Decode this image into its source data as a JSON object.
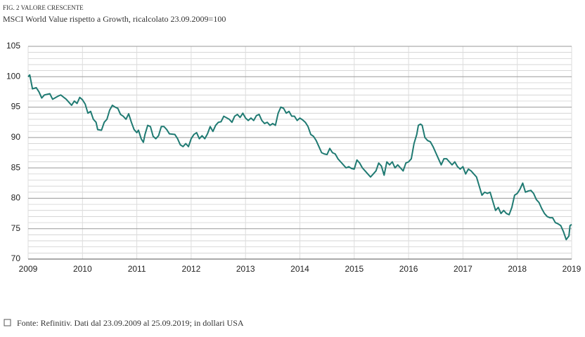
{
  "chart_data": {
    "type": "line",
    "kicker": "FIG. 2 VALORE CRESCENTE",
    "title": "MSCI World Value rispetto a Growth, ricalcolato 23.09.2009=100",
    "source": "Fonte: Refinitiv. Dati dal 23.09.2009 al 25.09.2019; in dollari USA",
    "xlim": [
      2009,
      2019
    ],
    "xticks": [
      2009,
      2010,
      2011,
      2012,
      2013,
      2014,
      2015,
      2016,
      2017,
      2018,
      2019
    ],
    "ylim": [
      70,
      105
    ],
    "yticks": [
      70,
      75,
      80,
      85,
      90,
      95,
      100,
      105
    ],
    "yminorticks": [
      71,
      72,
      73,
      74,
      76,
      77,
      78,
      79,
      81,
      82,
      83,
      84,
      86,
      87,
      88,
      89,
      91,
      92,
      93,
      94,
      96,
      97,
      98,
      99,
      101,
      102,
      103,
      104
    ],
    "grid": true,
    "series": [
      {
        "color": "#1f7a72",
        "x": [
          2009.0,
          2009.03,
          2009.08,
          2009.15,
          2009.2,
          2009.25,
          2009.3,
          2009.4,
          2009.45,
          2009.55,
          2009.6,
          2009.7,
          2009.8,
          2009.85,
          2009.9,
          2009.95,
          2010.0,
          2010.05,
          2010.1,
          2010.15,
          2010.2,
          2010.25,
          2010.28,
          2010.35,
          2010.4,
          2010.45,
          2010.5,
          2010.55,
          2010.6,
          2010.65,
          2010.7,
          2010.75,
          2010.8,
          2010.85,
          2010.9,
          2010.95,
          2011.0,
          2011.03,
          2011.08,
          2011.12,
          2011.15,
          2011.2,
          2011.25,
          2011.3,
          2011.35,
          2011.4,
          2011.45,
          2011.5,
          2011.55,
          2011.6,
          2011.7,
          2011.75,
          2011.8,
          2011.85,
          2011.9,
          2011.95,
          2012.0,
          2012.05,
          2012.1,
          2012.15,
          2012.2,
          2012.25,
          2012.3,
          2012.35,
          2012.4,
          2012.45,
          2012.5,
          2012.55,
          2012.6,
          2012.7,
          2012.75,
          2012.8,
          2012.85,
          2012.9,
          2012.95,
          2013.0,
          2013.05,
          2013.1,
          2013.15,
          2013.2,
          2013.25,
          2013.3,
          2013.35,
          2013.4,
          2013.45,
          2013.5,
          2013.55,
          2013.6,
          2013.65,
          2013.7,
          2013.75,
          2013.8,
          2013.85,
          2013.9,
          2013.95,
          2014.0,
          2014.05,
          2014.1,
          2014.15,
          2014.2,
          2014.25,
          2014.3,
          2014.35,
          2014.4,
          2014.45,
          2014.5,
          2014.55,
          2014.6,
          2014.65,
          2014.7,
          2014.75,
          2014.8,
          2014.85,
          2014.9,
          2014.95,
          2015.0,
          2015.05,
          2015.1,
          2015.15,
          2015.2,
          2015.25,
          2015.3,
          2015.35,
          2015.4,
          2015.45,
          2015.5,
          2015.55,
          2015.6,
          2015.65,
          2015.7,
          2015.75,
          2015.8,
          2015.85,
          2015.9,
          2015.95,
          2016.0,
          2016.05,
          2016.1,
          2016.15,
          2016.18,
          2016.22,
          2016.25,
          2016.3,
          2016.35,
          2016.4,
          2016.45,
          2016.5,
          2016.55,
          2016.6,
          2016.65,
          2016.7,
          2016.75,
          2016.8,
          2016.85,
          2016.9,
          2016.95,
          2017.0,
          2017.05,
          2017.1,
          2017.15,
          2017.2,
          2017.25,
          2017.3,
          2017.35,
          2017.4,
          2017.45,
          2017.5,
          2017.55,
          2017.6,
          2017.65,
          2017.7,
          2017.75,
          2017.8,
          2017.85,
          2017.9,
          2017.95,
          2018.0,
          2018.05,
          2018.1,
          2018.15,
          2018.2,
          2018.25,
          2018.3,
          2018.35,
          2018.4,
          2018.45,
          2018.5,
          2018.55,
          2018.6,
          2018.65,
          2018.7,
          2018.75,
          2018.8,
          2018.85,
          2018.9,
          2018.95,
          2018.97,
          2019.0
        ],
        "values": [
          100,
          100.3,
          98,
          98.2,
          97.5,
          96.5,
          97,
          97.2,
          96.3,
          96.8,
          97,
          96.3,
          95.3,
          96,
          95.6,
          96.6,
          96.2,
          95.5,
          94,
          94.3,
          93,
          92.5,
          91.3,
          91.2,
          92.5,
          93,
          94.5,
          95.3,
          95,
          94.8,
          93.8,
          93.5,
          93,
          93.9,
          92.5,
          91.3,
          90.8,
          91.2,
          89.8,
          89.2,
          90.5,
          92,
          91.8,
          90.2,
          89.8,
          90.3,
          91.8,
          91.8,
          91.3,
          90.6,
          90.5,
          89.8,
          88.8,
          88.5,
          89,
          88.5,
          89.8,
          90.5,
          90.8,
          89.8,
          90.3,
          89.8,
          90.6,
          91.8,
          91,
          92,
          92.5,
          92.6,
          93.5,
          93,
          92.5,
          93.5,
          93.8,
          93.3,
          94,
          93.2,
          92.8,
          93.2,
          92.8,
          93.6,
          93.8,
          92.8,
          92.3,
          92.5,
          92,
          92.3,
          92,
          94,
          95,
          94.8,
          94,
          94.3,
          93.5,
          93.5,
          92.8,
          93.2,
          92.9,
          92.5,
          91.8,
          90.5,
          90.2,
          89.5,
          88.5,
          87.5,
          87.3,
          87.2,
          88.2,
          87.5,
          87.3,
          86.5,
          86,
          85.5,
          85,
          85.2,
          84.9,
          84.8,
          86.3,
          85.8,
          85,
          84.5,
          84,
          83.5,
          84,
          84.5,
          85.8,
          85.3,
          83.8,
          86,
          85.5,
          86,
          85,
          85.5,
          85,
          84.5,
          85.8,
          86,
          86.5,
          89,
          90.5,
          92,
          92.2,
          92,
          90,
          89.5,
          89.3,
          88.5,
          87.5,
          86.5,
          85.5,
          86.5,
          86.5,
          86,
          85.5,
          86,
          85.2,
          84.8,
          85.2,
          84,
          84.8,
          84.5,
          84,
          83.5,
          82,
          80.5,
          81,
          80.8,
          81,
          79.5,
          78,
          78.5,
          77.5,
          78,
          77.5,
          77.3,
          78.5,
          80.5,
          80.8,
          81.5,
          82.5,
          81,
          81.2,
          81.3,
          80.8,
          79.8,
          79.3,
          78.3,
          77.5,
          77,
          76.8,
          76.8,
          76,
          75.8,
          75.5,
          74.5,
          73.2,
          73.8,
          75.5,
          75.7
        ]
      }
    ]
  }
}
